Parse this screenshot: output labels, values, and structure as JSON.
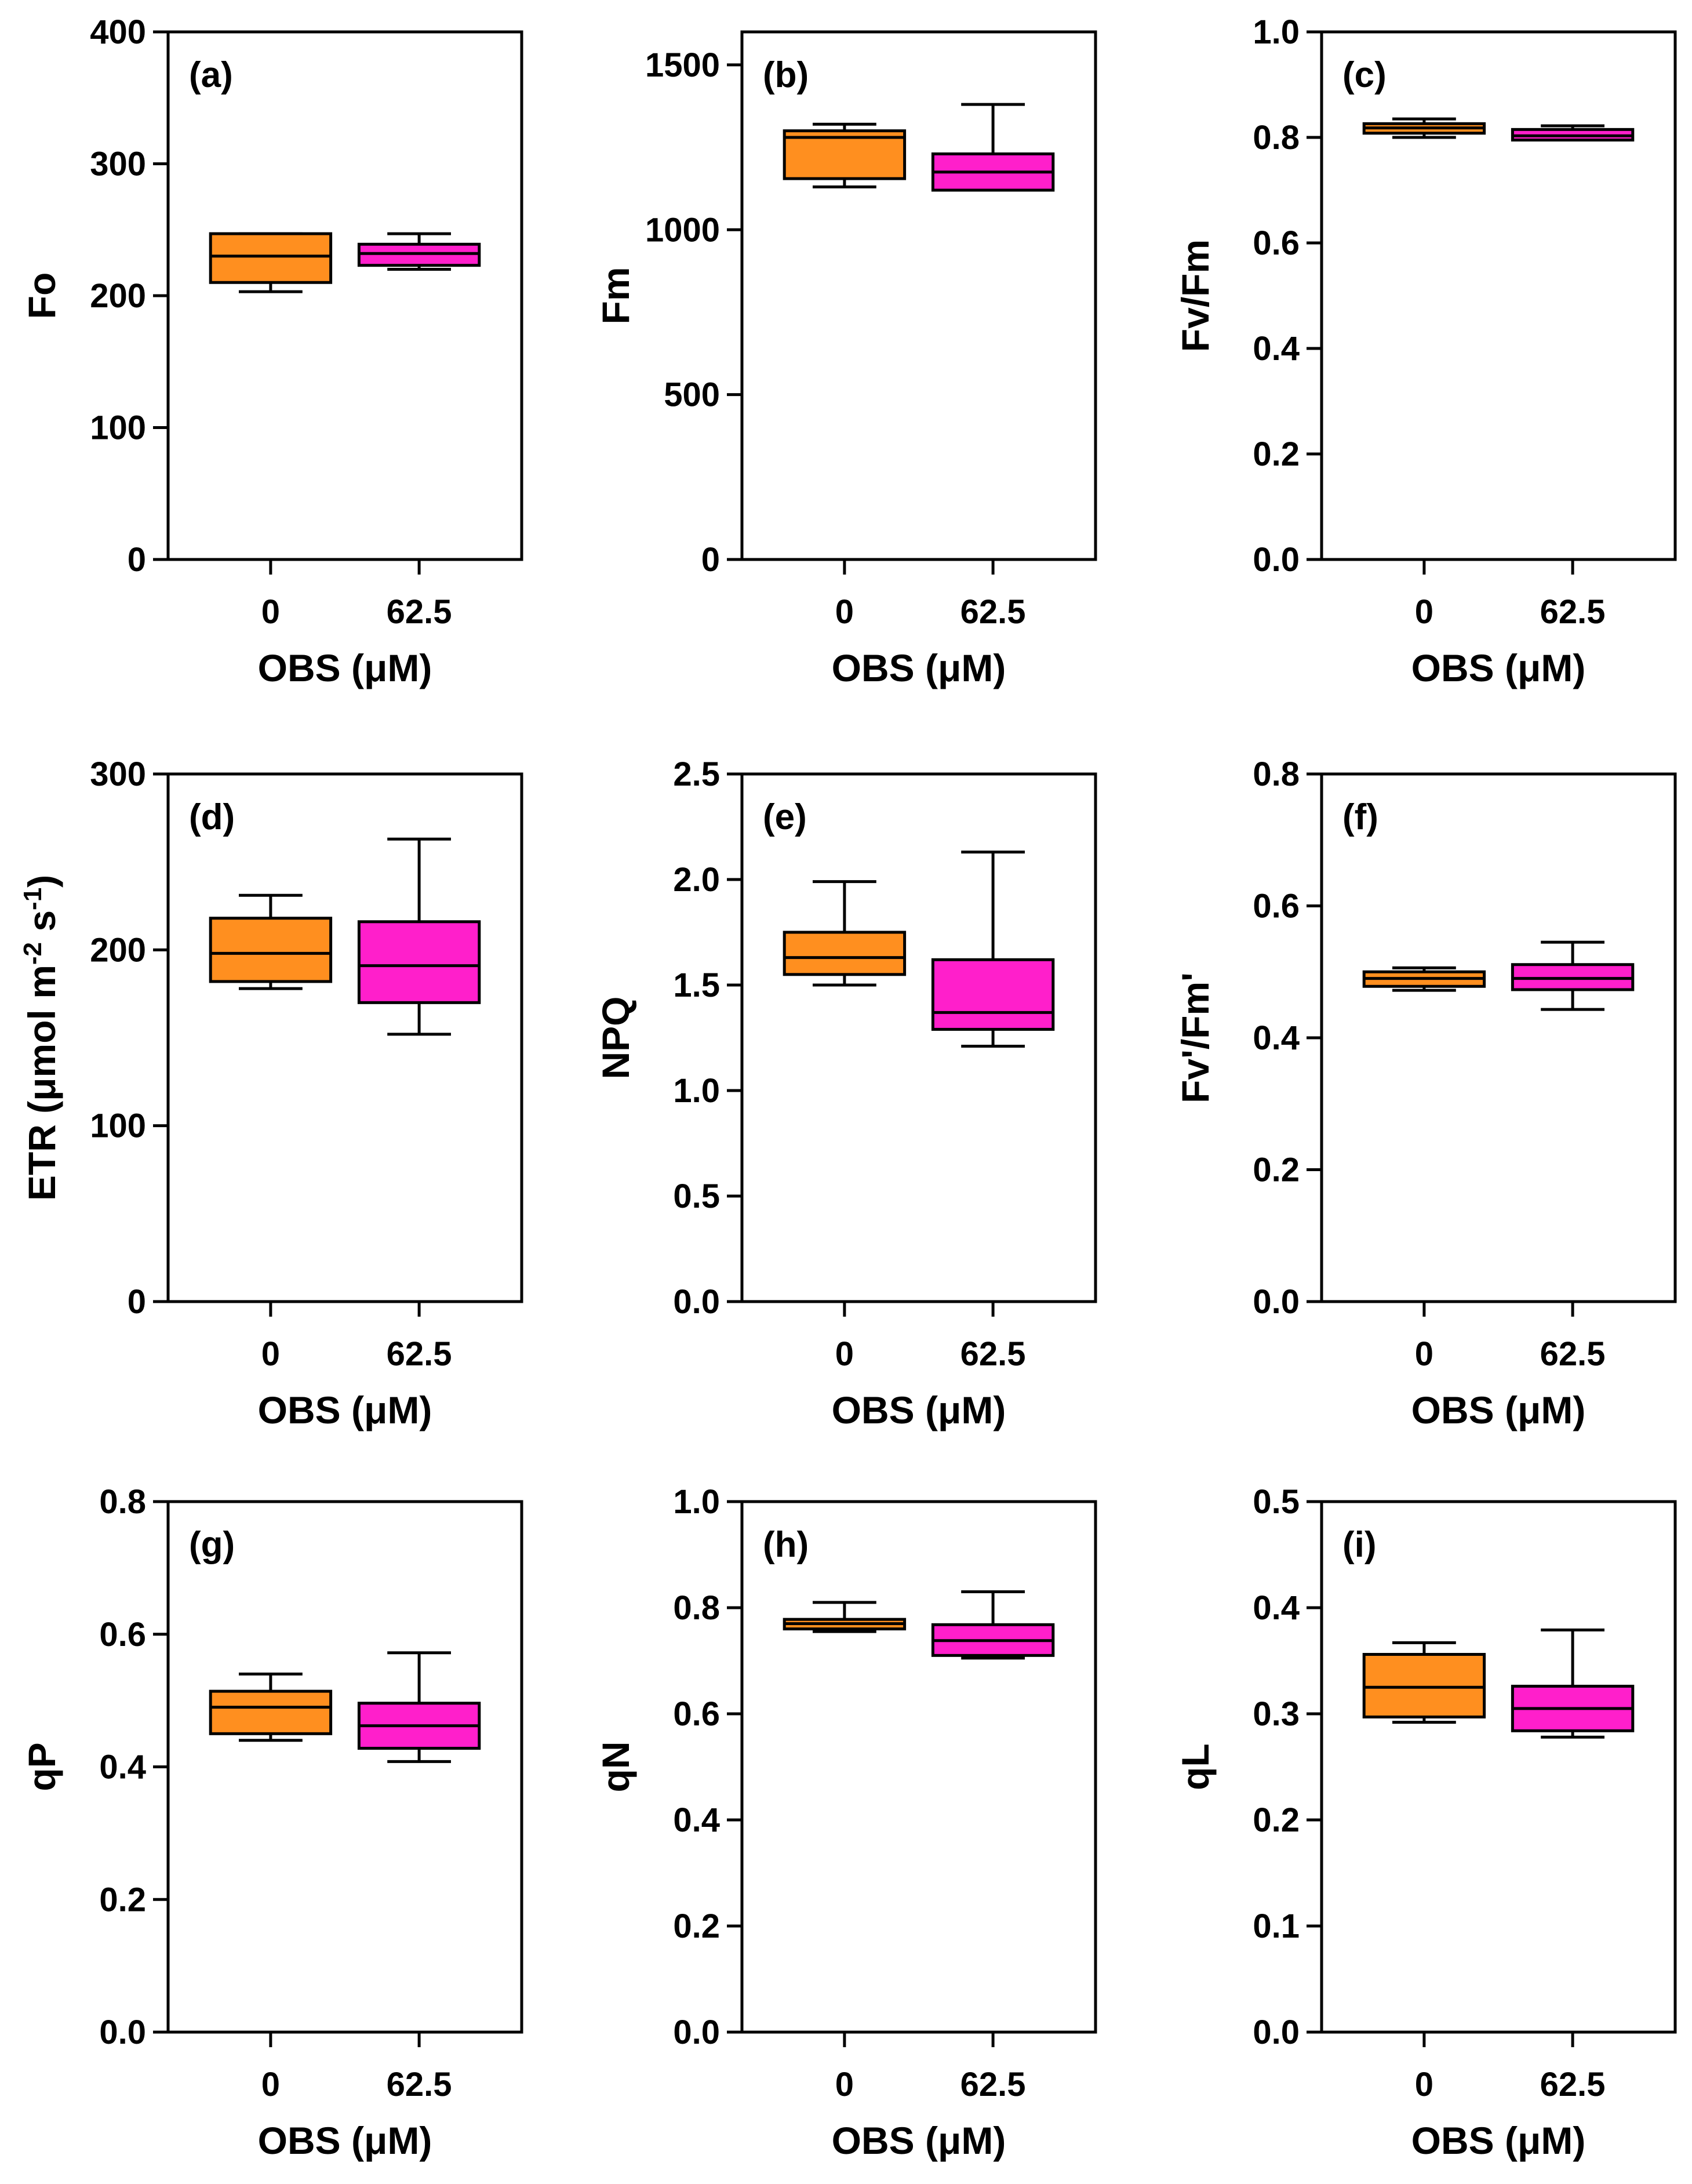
{
  "chart_data": [
    {
      "type": "box",
      "panel_label": "(a)",
      "ylabel": "Fo",
      "xlabel": "OBS (μM)",
      "ylim": [
        0,
        400
      ],
      "yticks": [
        "0",
        "100",
        "200",
        "300",
        "400"
      ],
      "ytick_values": [
        0,
        100,
        200,
        300,
        400
      ],
      "categories": [
        "0",
        "62.5"
      ],
      "boxes": [
        {
          "category": "0",
          "min": 203,
          "q1": 210,
          "median": 230,
          "q3": 247,
          "max": 247
        },
        {
          "category": "62.5",
          "min": 220,
          "q1": 223,
          "median": 232,
          "q3": 239,
          "max": 247
        }
      ]
    },
    {
      "type": "box",
      "panel_label": "(b)",
      "ylabel": "Fm",
      "xlabel": "OBS (μM)",
      "ylim": [
        0,
        1600
      ],
      "yticks": [
        "0",
        "500",
        "1000",
        "1500"
      ],
      "ytick_values": [
        0,
        500,
        1000,
        1500
      ],
      "categories": [
        "0",
        "62.5"
      ],
      "boxes": [
        {
          "category": "0",
          "min": 1130,
          "q1": 1155,
          "median": 1280,
          "q3": 1300,
          "max": 1320
        },
        {
          "category": "62.5",
          "min": 1120,
          "q1": 1120,
          "median": 1175,
          "q3": 1230,
          "max": 1380
        }
      ]
    },
    {
      "type": "box",
      "panel_label": "(c)",
      "ylabel": "Fv/Fm",
      "xlabel": "OBS (μM)",
      "ylim": [
        0,
        1.0
      ],
      "yticks": [
        "0.0",
        "0.2",
        "0.4",
        "0.6",
        "0.8",
        "1.0"
      ],
      "ytick_values": [
        0,
        0.2,
        0.4,
        0.6,
        0.8,
        1.0
      ],
      "categories": [
        "0",
        "62.5"
      ],
      "boxes": [
        {
          "category": "0",
          "min": 0.8,
          "q1": 0.808,
          "median": 0.818,
          "q3": 0.826,
          "max": 0.835
        },
        {
          "category": "62.5",
          "min": 0.795,
          "q1": 0.795,
          "median": 0.803,
          "q3": 0.815,
          "max": 0.822
        }
      ]
    },
    {
      "type": "box",
      "panel_label": "(d)",
      "ylabel": "ETR (μmol m",
      "ylabel_sup1": "-2",
      "ylabel_mid": " s",
      "ylabel_sup2": "-1",
      "ylabel_end": ")",
      "xlabel": "OBS (μM)",
      "ylim": [
        0,
        300
      ],
      "yticks": [
        "0",
        "100",
        "200",
        "300"
      ],
      "ytick_values": [
        0,
        100,
        200,
        300
      ],
      "categories": [
        "0",
        "62.5"
      ],
      "boxes": [
        {
          "category": "0",
          "min": 178,
          "q1": 182,
          "median": 198,
          "q3": 218,
          "max": 231
        },
        {
          "category": "62.5",
          "min": 152,
          "q1": 170,
          "median": 191,
          "q3": 216,
          "max": 263
        }
      ]
    },
    {
      "type": "box",
      "panel_label": "(e)",
      "ylabel": "NPQ",
      "xlabel": "OBS (μM)",
      "ylim": [
        0,
        2.5
      ],
      "yticks": [
        "0.0",
        "0.5",
        "1.0",
        "1.5",
        "2.0",
        "2.5"
      ],
      "ytick_values": [
        0,
        0.5,
        1.0,
        1.5,
        2.0,
        2.5
      ],
      "categories": [
        "0",
        "62.5"
      ],
      "boxes": [
        {
          "category": "0",
          "min": 1.5,
          "q1": 1.55,
          "median": 1.63,
          "q3": 1.75,
          "max": 1.99
        },
        {
          "category": "62.5",
          "min": 1.21,
          "q1": 1.29,
          "median": 1.37,
          "q3": 1.62,
          "max": 2.13
        }
      ]
    },
    {
      "type": "box",
      "panel_label": "(f)",
      "ylabel": "Fv'/Fm'",
      "xlabel": "OBS (μM)",
      "ylim": [
        0,
        0.8
      ],
      "yticks": [
        "0.0",
        "0.2",
        "0.4",
        "0.6",
        "0.8"
      ],
      "ytick_values": [
        0,
        0.2,
        0.4,
        0.6,
        0.8
      ],
      "categories": [
        "0",
        "62.5"
      ],
      "boxes": [
        {
          "category": "0",
          "min": 0.472,
          "q1": 0.478,
          "median": 0.49,
          "q3": 0.5,
          "max": 0.506
        },
        {
          "category": "62.5",
          "min": 0.443,
          "q1": 0.473,
          "median": 0.49,
          "q3": 0.511,
          "max": 0.545
        }
      ]
    },
    {
      "type": "box",
      "panel_label": "(g)",
      "ylabel": "qP",
      "xlabel": "OBS (μM)",
      "ylim": [
        0,
        0.8
      ],
      "yticks": [
        "0.0",
        "0.2",
        "0.4",
        "0.6",
        "0.8"
      ],
      "ytick_values": [
        0,
        0.2,
        0.4,
        0.6,
        0.8
      ],
      "categories": [
        "0",
        "62.5"
      ],
      "boxes": [
        {
          "category": "0",
          "min": 0.44,
          "q1": 0.45,
          "median": 0.49,
          "q3": 0.514,
          "max": 0.54
        },
        {
          "category": "62.5",
          "min": 0.408,
          "q1": 0.428,
          "median": 0.462,
          "q3": 0.496,
          "max": 0.572
        }
      ]
    },
    {
      "type": "box",
      "panel_label": "(h)",
      "ylabel": "qN",
      "xlabel": "OBS (μM)",
      "ylim": [
        0,
        1.0
      ],
      "yticks": [
        "0.0",
        "0.2",
        "0.4",
        "0.6",
        "0.8",
        "1.0"
      ],
      "ytick_values": [
        0,
        0.2,
        0.4,
        0.6,
        0.8,
        1.0
      ],
      "categories": [
        "0",
        "62.5"
      ],
      "boxes": [
        {
          "category": "0",
          "min": 0.755,
          "q1": 0.76,
          "median": 0.77,
          "q3": 0.778,
          "max": 0.81
        },
        {
          "category": "62.5",
          "min": 0.705,
          "q1": 0.71,
          "median": 0.738,
          "q3": 0.768,
          "max": 0.83
        }
      ]
    },
    {
      "type": "box",
      "panel_label": "(i)",
      "ylabel": "qL",
      "xlabel": "OBS (μM)",
      "ylim": [
        0,
        0.5
      ],
      "yticks": [
        "0.0",
        "0.1",
        "0.2",
        "0.3",
        "0.4",
        "0.5"
      ],
      "ytick_values": [
        0,
        0.1,
        0.2,
        0.3,
        0.4,
        0.5
      ],
      "categories": [
        "0",
        "62.5"
      ],
      "boxes": [
        {
          "category": "0",
          "min": 0.292,
          "q1": 0.297,
          "median": 0.325,
          "q3": 0.356,
          "max": 0.367
        },
        {
          "category": "62.5",
          "min": 0.278,
          "q1": 0.284,
          "median": 0.305,
          "q3": 0.326,
          "max": 0.379
        }
      ]
    }
  ],
  "colors": {
    "control_box": "#FF8F1F",
    "treatment_box": "#FF1FCB",
    "axis": "#000000"
  }
}
